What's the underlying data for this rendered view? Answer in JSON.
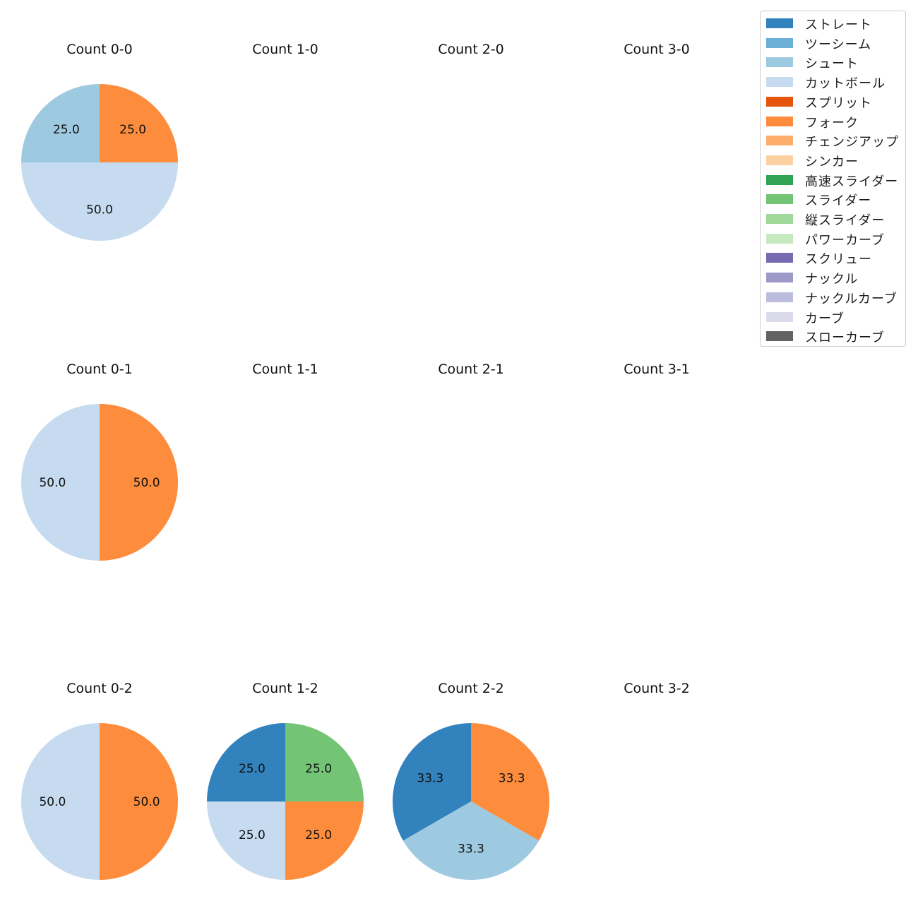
{
  "chart_data": {
    "type": "pie",
    "layout": "grid 3 rows x 4 columns of pies, legend at top-right",
    "categories": [
      "ストレート",
      "ツーシーム",
      "シュート",
      "カットボール",
      "スプリット",
      "フォーク",
      "チェンジアップ",
      "シンカー",
      "高速スライダー",
      "スライダー",
      "縦スライダー",
      "パワーカーブ",
      "スクリュー",
      "ナックル",
      "ナックルカーブ",
      "カーブ",
      "スローカーブ"
    ],
    "colors": [
      "#3182bd",
      "#6baed6",
      "#9ecae1",
      "#c6dbef",
      "#e6550d",
      "#fd8d3c",
      "#fdae6b",
      "#fdd0a2",
      "#31a354",
      "#74c476",
      "#a1d99b",
      "#c7e9c0",
      "#756bb1",
      "#9e9ac8",
      "#bcbddc",
      "#dadaeb",
      "#636363"
    ],
    "label_format": "percent, 1 decimal",
    "start_angle": 90,
    "direction": "counterclockwise",
    "charts": [
      {
        "title": "Count 0-0",
        "slices": [
          {
            "category": "シュート",
            "value": 25.0
          },
          {
            "category": "カットボール",
            "value": 50.0
          },
          {
            "category": "フォーク",
            "value": 25.0
          }
        ]
      },
      {
        "title": "Count 1-0",
        "slices": []
      },
      {
        "title": "Count 2-0",
        "slices": []
      },
      {
        "title": "Count 3-0",
        "slices": []
      },
      {
        "title": "Count 0-1",
        "slices": [
          {
            "category": "カットボール",
            "value": 50.0
          },
          {
            "category": "フォーク",
            "value": 50.0
          }
        ]
      },
      {
        "title": "Count 1-1",
        "slices": []
      },
      {
        "title": "Count 2-1",
        "slices": []
      },
      {
        "title": "Count 3-1",
        "slices": []
      },
      {
        "title": "Count 0-2",
        "slices": [
          {
            "category": "カットボール",
            "value": 50.0
          },
          {
            "category": "フォーク",
            "value": 50.0
          }
        ]
      },
      {
        "title": "Count 1-2",
        "slices": [
          {
            "category": "ストレート",
            "value": 25.0
          },
          {
            "category": "カットボール",
            "value": 25.0
          },
          {
            "category": "フォーク",
            "value": 25.0
          },
          {
            "category": "スライダー",
            "value": 25.0
          }
        ]
      },
      {
        "title": "Count 2-2",
        "slices": [
          {
            "category": "ストレート",
            "value": 33.3
          },
          {
            "category": "シュート",
            "value": 33.3
          },
          {
            "category": "フォーク",
            "value": 33.3
          }
        ]
      },
      {
        "title": "Count 3-2",
        "slices": []
      }
    ]
  }
}
